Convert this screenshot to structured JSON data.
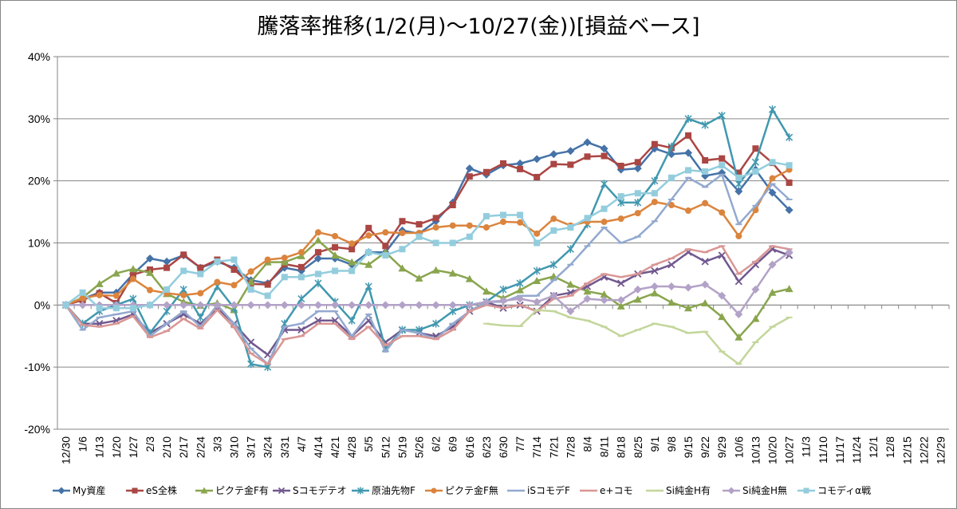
{
  "chart_data": {
    "type": "line",
    "title": "騰落率推移(1/2(月)～10/27(金))[損益ベース]",
    "xlabel": "",
    "ylabel": "",
    "ylim": [
      -20,
      40
    ],
    "y_ticks": [
      "-20%",
      "-10%",
      "0%",
      "10%",
      "20%",
      "30%",
      "40%"
    ],
    "grid": true,
    "legend_position": "bottom",
    "x_tick_labels": [
      "12/30",
      "1/6",
      "1/13",
      "1/20",
      "1/27",
      "2/3",
      "2/10",
      "2/17",
      "2/24",
      "3/3",
      "3/10",
      "3/17",
      "3/24",
      "3/31",
      "4/7",
      "4/14",
      "4/21",
      "4/28",
      "5/5",
      "5/12",
      "5/19",
      "5/26",
      "6/2",
      "6/9",
      "6/16",
      "6/23",
      "6/30",
      "7/7",
      "7/14",
      "7/21",
      "7/28",
      "8/4",
      "8/11",
      "8/18",
      "8/25",
      "9/1",
      "9/8",
      "9/15",
      "9/22",
      "9/29",
      "10/6",
      "10/13",
      "10/20",
      "10/27",
      "11/3",
      "11/10",
      "11/17",
      "11/24",
      "12/1",
      "12/8",
      "12/15",
      "12/22",
      "12/29"
    ],
    "series": [
      {
        "name": "My資産",
        "color": "#4572A7",
        "marker": "diamond",
        "values": [
          0,
          1,
          2,
          2,
          5,
          7.5,
          7,
          8,
          6,
          7,
          6,
          4,
          3.5,
          6,
          5.5,
          7.5,
          7.5,
          6.5,
          8.5,
          8.5,
          12,
          11.5,
          13.5,
          16.5,
          22,
          21,
          22.5,
          22.8,
          23.5,
          24.3,
          24.8,
          26.2,
          25.2,
          21.8,
          22,
          25.2,
          24.3,
          24.5,
          20.8,
          21.3,
          18.3,
          21.8,
          18.1,
          15.3
        ]
      },
      {
        "name": "eS全株",
        "color": "#AA4643",
        "marker": "square",
        "values": [
          0,
          0.8,
          1.9,
          0.3,
          4.9,
          5.7,
          6,
          8.1,
          6,
          7.3,
          5.7,
          3.4,
          3.3,
          6.6,
          6.1,
          8.5,
          9.3,
          9,
          12.4,
          9.5,
          13.5,
          13,
          14,
          16.1,
          20.7,
          21.4,
          22.8,
          21.9,
          20.6,
          22.7,
          22.6,
          23.9,
          24,
          22.4,
          23,
          25.9,
          25.3,
          27.3,
          23.3,
          23.6,
          21.3,
          25.2,
          22.9,
          19.7
        ]
      },
      {
        "name": "ピクテ金F有",
        "color": "#89A54E",
        "marker": "triangle",
        "values": [
          0,
          1.2,
          3.4,
          5.1,
          5.8,
          5.2,
          1.8,
          0.5,
          -0.1,
          0.3,
          -0.8,
          3.7,
          6.9,
          6.9,
          7.9,
          10.4,
          8,
          6.9,
          6.5,
          8.5,
          5.9,
          4.3,
          5.6,
          5.1,
          4.2,
          2.2,
          1.1,
          2.4,
          3.9,
          4.6,
          3.3,
          2.2,
          1.7,
          -0.2,
          0.9,
          1.9,
          0.4,
          -0.5,
          0.3,
          -1.9,
          -5.2,
          -2.2,
          2,
          2.6
        ]
      },
      {
        "name": "Sコモデテオ",
        "color": "#71588F",
        "marker": "x",
        "values": [
          0,
          -3,
          -3,
          -2.5,
          -1.5,
          -4.5,
          -3,
          -1.5,
          -3,
          -0.5,
          -3,
          -6,
          -8,
          -4,
          -4,
          -2.5,
          -2.5,
          -5,
          -2.5,
          -6,
          -4,
          -4.5,
          -5,
          -3.5,
          -1,
          0.5,
          -0.5,
          0,
          -1,
          1.5,
          2,
          3,
          4.5,
          3.5,
          5,
          5.5,
          6.5,
          8.5,
          7,
          8,
          3.8,
          6.5,
          9,
          8
        ]
      },
      {
        "name": "原油先物F",
        "color": "#4198AF",
        "marker": "star",
        "values": [
          0,
          -3,
          -1,
          0,
          1,
          -4.5,
          -1,
          2.5,
          -2,
          3,
          -0.5,
          -9.5,
          -10,
          -3,
          1,
          3.5,
          0.5,
          -2.5,
          3,
          -7,
          -4,
          -4,
          -3,
          -1,
          0,
          0.5,
          2.5,
          3.5,
          5.5,
          6.5,
          9,
          13,
          19.5,
          16.5,
          16.5,
          20,
          25.5,
          30,
          29,
          30.5,
          19.5,
          23,
          31.5,
          27
        ]
      },
      {
        "name": "ピクテ金F無",
        "color": "#DB843D",
        "marker": "circle",
        "values": [
          0,
          1.1,
          1.6,
          1.5,
          4.2,
          2.4,
          1.9,
          1.6,
          1.9,
          3.7,
          3.2,
          5.4,
          7.3,
          7.6,
          8.5,
          11.7,
          11.1,
          9.9,
          11.2,
          11.7,
          11.6,
          11.6,
          12.5,
          12.8,
          12.8,
          12.5,
          13.4,
          13.3,
          11.5,
          13.9,
          12.8,
          13.4,
          13.4,
          13.9,
          14.8,
          16.6,
          16.1,
          15.2,
          16.4,
          14.9,
          11.1,
          15.3,
          20.4,
          21.8
        ]
      },
      {
        "name": "iSコモデF",
        "color": "#93A9CF",
        "marker": "dash",
        "values": [
          0,
          -4,
          -2,
          -1.5,
          -1,
          -5,
          -3,
          -1,
          -3.5,
          0,
          -3,
          -7,
          -9.5,
          -3.5,
          -3,
          -1,
          -1,
          -5,
          -1.5,
          -7.5,
          -4,
          -4.5,
          -5.5,
          -3,
          -1,
          0.5,
          0.5,
          1.5,
          1.5,
          4,
          6.5,
          9.5,
          12.5,
          10,
          11,
          13.5,
          17,
          20.5,
          19,
          21,
          13,
          16,
          19.5,
          17
        ]
      },
      {
        "name": "e+コモ",
        "color": "#D99694",
        "marker": "dash",
        "values": [
          0,
          -3.2,
          -3.5,
          -3,
          -1.8,
          -5.2,
          -4.2,
          -2.2,
          -3.8,
          -0.8,
          -3.6,
          -7.8,
          -9.5,
          -5.5,
          -5,
          -3,
          -3,
          -5.5,
          -3.5,
          -6.5,
          -5,
          -5,
          -5.5,
          -4,
          -1,
          0,
          -0.5,
          0,
          -1,
          1,
          1.5,
          3.5,
          5,
          4.5,
          5,
          6.5,
          7.5,
          9,
          8.5,
          9.5,
          5,
          7,
          9.5,
          9
        ]
      },
      {
        "name": "Si純金H有",
        "color": "#C3D69B",
        "marker": "dash",
        "values": [
          null,
          null,
          null,
          null,
          null,
          null,
          null,
          null,
          null,
          null,
          null,
          null,
          null,
          null,
          null,
          null,
          null,
          null,
          null,
          null,
          null,
          null,
          null,
          null,
          null,
          -3,
          -3.3,
          -3.4,
          -0.8,
          -1,
          -2,
          -2.5,
          -3.5,
          -5,
          -4,
          -3,
          -3.5,
          -4.5,
          -4.3,
          -7.5,
          -9.5,
          -6,
          -3.5,
          -2
        ]
      },
      {
        "name": "Si純金H無",
        "color": "#B3A2C7",
        "marker": "diamond",
        "values": [
          0,
          0,
          0,
          0,
          0,
          0,
          0,
          0,
          0,
          0,
          0,
          0,
          0,
          0,
          0,
          0,
          0,
          0,
          0,
          0,
          0,
          0,
          0,
          0,
          0,
          0.5,
          0.7,
          1,
          0.5,
          1.5,
          -1,
          1,
          0.8,
          0.8,
          2.5,
          3,
          3,
          2.8,
          3.3,
          1.5,
          -1.5,
          2.5,
          6.5,
          8.5
        ]
      },
      {
        "name": "コモディα戦",
        "color": "#93CDDD",
        "marker": "square",
        "values": [
          0,
          2,
          -0.5,
          -0.5,
          -0.5,
          0,
          2.5,
          5.5,
          5,
          7,
          7.3,
          2.5,
          1.5,
          4.5,
          4.5,
          5,
          5.5,
          5.5,
          8.5,
          8,
          9,
          11,
          10,
          10,
          11,
          14.3,
          14.5,
          14.5,
          10,
          12,
          12.5,
          14,
          15.5,
          17.5,
          18,
          18,
          20.5,
          21.7,
          21.5,
          22.5,
          20.5,
          21.5,
          23,
          22.5
        ]
      }
    ]
  }
}
